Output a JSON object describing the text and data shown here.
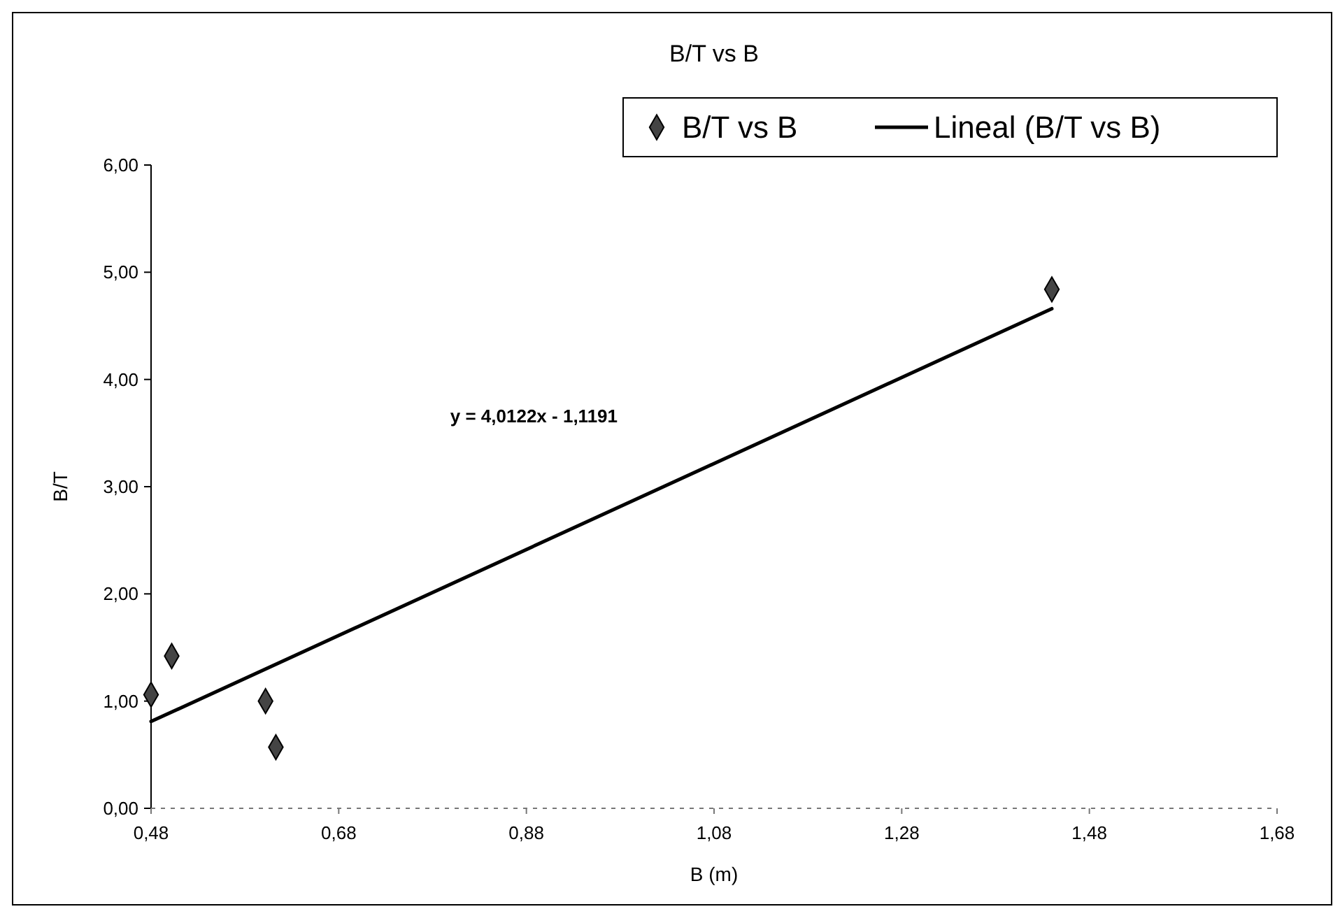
{
  "chart_data": {
    "type": "scatter",
    "title": "B/T vs B",
    "xlabel": "B (m)",
    "ylabel": "B/T",
    "xlim": [
      0.48,
      1.68
    ],
    "ylim": [
      0,
      6
    ],
    "xticks": [
      {
        "value": 0.48,
        "label": "0,48"
      },
      {
        "value": 0.68,
        "label": "0,68"
      },
      {
        "value": 0.88,
        "label": "0,88"
      },
      {
        "value": 1.08,
        "label": "1,08"
      },
      {
        "value": 1.28,
        "label": "1,28"
      },
      {
        "value": 1.48,
        "label": "1,48"
      },
      {
        "value": 1.68,
        "label": "1,68"
      }
    ],
    "yticks": [
      {
        "value": 0,
        "label": "0,00"
      },
      {
        "value": 1,
        "label": "1,00"
      },
      {
        "value": 2,
        "label": "2,00"
      },
      {
        "value": 3,
        "label": "3,00"
      },
      {
        "value": 4,
        "label": "4,00"
      },
      {
        "value": 5,
        "label": "5,00"
      },
      {
        "value": 6,
        "label": "6,00"
      }
    ],
    "legend": "top right",
    "grid": false,
    "annotations": [
      "y = 4,0122x - 1,1191"
    ],
    "series": [
      {
        "name": "B/T vs B",
        "marker": "diamond",
        "color": "#444444",
        "x": [
          0.48,
          0.502,
          0.602,
          0.613,
          1.44
        ],
        "values": [
          1.06,
          1.42,
          1.0,
          0.57,
          4.84
        ]
      },
      {
        "name": "Lineal (B/T vs B)",
        "type": "line",
        "marker": "none",
        "line_style": "solid",
        "color": "#000000",
        "x": [
          0.48,
          1.44
        ],
        "values": [
          0.81,
          4.66
        ]
      }
    ]
  }
}
